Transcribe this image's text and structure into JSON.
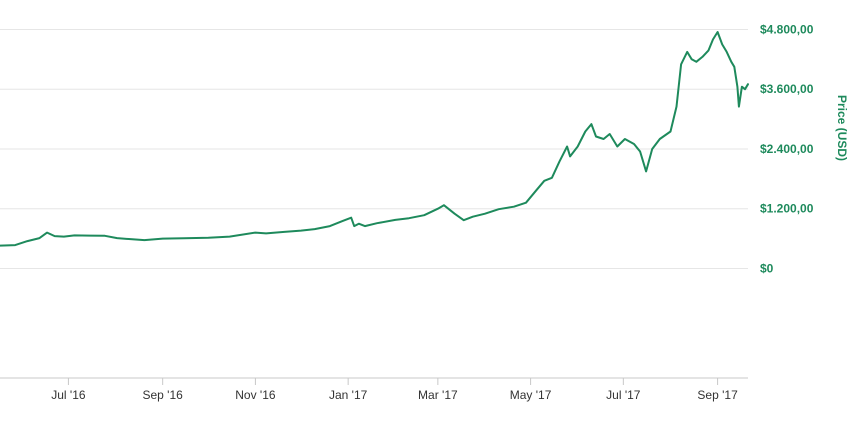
{
  "colors": {
    "series": "#1e8a5c",
    "axis_text": "#1e8a5c",
    "grid": "#e6e6e6",
    "x_text": "#333333"
  },
  "chart_data": {
    "type": "line",
    "title": "",
    "xlabel": "",
    "ylabel": "Price (USD)",
    "y_axis_position": "right",
    "grid": true,
    "legend": "none",
    "xlim": [
      "2016-05-17",
      "2017-09-21"
    ],
    "ylim": [
      -2200,
      4950
    ],
    "y_ticks": [
      0,
      1200,
      2400,
      3600,
      4800
    ],
    "y_tick_labels": [
      "$0",
      "$1.200,00",
      "$2.400,00",
      "$3.600,00",
      "$4.800,00"
    ],
    "x_ticks": [
      "2016-07-01",
      "2016-09-01",
      "2016-11-01",
      "2017-01-01",
      "2017-03-01",
      "2017-05-01",
      "2017-07-01",
      "2017-09-01"
    ],
    "x_tick_labels": [
      "Jul '16",
      "Sep '16",
      "Nov '16",
      "Jan '17",
      "Mar '17",
      "May '17",
      "Jul '17",
      "Sep '17"
    ],
    "series": [
      {
        "x": [
          "2016-05-17",
          "2016-05-27",
          "2016-06-04",
          "2016-06-12",
          "2016-06-17",
          "2016-06-22",
          "2016-06-28",
          "2016-07-05",
          "2016-07-15",
          "2016-07-25",
          "2016-08-02",
          "2016-08-12",
          "2016-08-20",
          "2016-09-01",
          "2016-09-15",
          "2016-10-01",
          "2016-10-15",
          "2016-11-01",
          "2016-11-08",
          "2016-11-20",
          "2016-12-01",
          "2016-12-10",
          "2016-12-20",
          "2016-12-28",
          "2017-01-03",
          "2017-01-05",
          "2017-01-08",
          "2017-01-12",
          "2017-01-20",
          "2017-02-01",
          "2017-02-10",
          "2017-02-20",
          "2017-03-01",
          "2017-03-05",
          "2017-03-12",
          "2017-03-18",
          "2017-03-24",
          "2017-04-01",
          "2017-04-10",
          "2017-04-20",
          "2017-04-28",
          "2017-05-05",
          "2017-05-10",
          "2017-05-15",
          "2017-05-20",
          "2017-05-25",
          "2017-05-27",
          "2017-06-01",
          "2017-06-06",
          "2017-06-10",
          "2017-06-13",
          "2017-06-18",
          "2017-06-22",
          "2017-06-27",
          "2017-07-02",
          "2017-07-08",
          "2017-07-12",
          "2017-07-16",
          "2017-07-20",
          "2017-07-25",
          "2017-08-01",
          "2017-08-05",
          "2017-08-08",
          "2017-08-12",
          "2017-08-15",
          "2017-08-18",
          "2017-08-22",
          "2017-08-26",
          "2017-08-29",
          "2017-09-01",
          "2017-09-04",
          "2017-09-07",
          "2017-09-10",
          "2017-09-12",
          "2017-09-14",
          "2017-09-15",
          "2017-09-17",
          "2017-09-19",
          "2017-09-21"
        ],
        "y": [
          460,
          470,
          550,
          610,
          720,
          650,
          640,
          665,
          660,
          655,
          610,
          585,
          570,
          600,
          605,
          615,
          640,
          720,
          705,
          735,
          760,
          790,
          850,
          950,
          1020,
          850,
          900,
          850,
          910,
          975,
          1010,
          1070,
          1200,
          1270,
          1100,
          970,
          1040,
          1100,
          1190,
          1240,
          1320,
          1580,
          1760,
          1820,
          2150,
          2450,
          2250,
          2450,
          2750,
          2900,
          2650,
          2600,
          2700,
          2450,
          2600,
          2500,
          2350,
          1950,
          2400,
          2600,
          2750,
          3250,
          4100,
          4350,
          4200,
          4150,
          4250,
          4380,
          4600,
          4750,
          4500,
          4350,
          4150,
          4050,
          3650,
          3250,
          3650,
          3600,
          3700
        ]
      }
    ]
  }
}
